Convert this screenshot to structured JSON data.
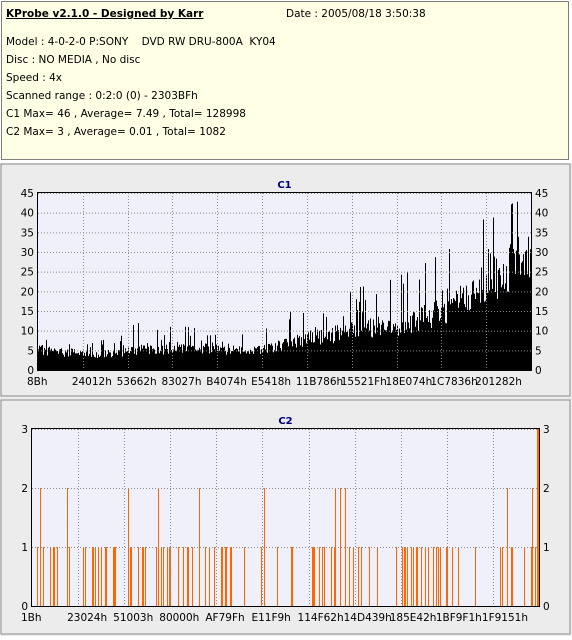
{
  "header": {
    "title": "KProbe v2.1.0 - Designed by Karr",
    "date": "Date : 2005/08/18 3:50:38",
    "lines": [
      "Model : 4-0-2-0 P:SONY    DVD RW DRU-800A  KY04",
      "Disc : NO MEDIA , No disc",
      "Speed : 4x",
      "Scanned range : 0:2:0 (0) - 2303BFh",
      "C1 Max= 46 , Average= 7.49 , Total= 128998",
      "C2 Max= 3 , Average= 0.01 , Total= 1082"
    ]
  },
  "colors": {
    "c1_bars": "#000000",
    "c2_bars": "#ff6600",
    "plot_bg": "#f0f0fa",
    "grid": "#8c8c8c",
    "title": "#00007f"
  },
  "chart_data": [
    {
      "type": "bar",
      "title": "C1",
      "ylim": [
        0,
        45
      ],
      "yticks": [
        0,
        5,
        10,
        15,
        20,
        25,
        30,
        35,
        40,
        45
      ],
      "x_tick_labels": [
        "8Bh",
        "24012h",
        "53662h",
        "83027h",
        "B4074h",
        "E5418h",
        "11B786h",
        "15521Fh",
        "18E074h",
        "1C7836h",
        "201282h"
      ],
      "grid": true,
      "envelope": {
        "x_fraction": [
          0.0,
          0.05,
          0.1,
          0.15,
          0.2,
          0.25,
          0.3,
          0.35,
          0.4,
          0.45,
          0.5,
          0.55,
          0.6,
          0.65,
          0.7,
          0.75,
          0.8,
          0.85,
          0.9,
          0.95,
          1.0
        ],
        "typical": [
          5,
          4.5,
          4,
          4,
          5,
          5,
          5.5,
          5.5,
          5,
          5,
          6.5,
          8,
          9,
          10,
          11,
          12,
          14,
          17,
          21,
          25,
          30
        ],
        "peak": [
          9,
          7,
          7,
          8,
          12,
          11,
          11,
          10,
          10,
          11,
          14,
          17,
          18,
          21,
          22,
          25,
          28,
          33,
          38,
          41,
          46
        ]
      }
    },
    {
      "type": "bar",
      "title": "C2",
      "ylim": [
        0,
        3
      ],
      "yticks": [
        0,
        1,
        2,
        3
      ],
      "x_tick_labels": [
        "1Bh",
        "23024h",
        "51003h",
        "80000h",
        "AF79Fh",
        "E11F9h",
        "114F62h",
        "14D439h",
        "185E42h",
        "1BF9F1h",
        "1F9151h"
      ],
      "grid": true,
      "level2_x_fraction": [
        0.015,
        0.07,
        0.19,
        0.25,
        0.33,
        0.46,
        0.6,
        0.61,
        0.62,
        0.94,
        0.99
      ],
      "level3_x_fraction": [
        1.0
      ],
      "level1_density": 0.5
    }
  ]
}
